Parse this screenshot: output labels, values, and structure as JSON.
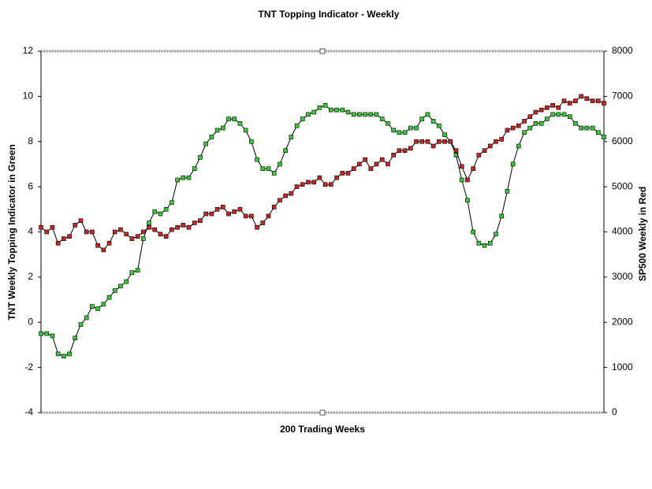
{
  "chart_data": {
    "type": "line",
    "title": "TNT Topping Indicator - Weekly",
    "x_label": "200 Trading Weeks",
    "y_label": "TNT Weekly Topping Indicator in Green",
    "y2_label": "SP500 Weekly in Red",
    "ylim": [
      -4,
      12
    ],
    "yticks": [
      -4,
      -2,
      0,
      2,
      4,
      6,
      8,
      10,
      12
    ],
    "y2lim": [
      0,
      8000
    ],
    "y2ticks": [
      0,
      1000,
      2000,
      3000,
      4000,
      5000,
      6000,
      7000,
      8000
    ],
    "series": [
      {
        "color": "#33cc33",
        "axis": "y",
        "values": [
          -0.5,
          -0.5,
          -0.6,
          -1.4,
          -1.5,
          -1.4,
          -0.7,
          -0.1,
          0.2,
          0.7,
          0.6,
          0.8,
          1.1,
          1.4,
          1.6,
          1.8,
          2.2,
          2.3,
          3.7,
          4.4,
          4.9,
          4.8,
          5.0,
          5.3,
          6.3,
          6.4,
          6.4,
          6.8,
          7.3,
          7.9,
          8.2,
          8.5,
          8.6,
          9.0,
          9.0,
          8.8,
          8.5,
          8.0,
          7.2,
          6.8,
          6.8,
          6.6,
          7.0,
          7.6,
          8.2,
          8.7,
          9.0,
          9.2,
          9.3,
          9.5,
          9.6,
          9.4,
          9.4,
          9.4,
          9.3,
          9.2,
          9.2,
          9.2,
          9.2,
          9.2,
          9.0,
          8.8,
          8.5,
          8.4,
          8.4,
          8.6,
          8.6,
          9.0,
          9.2,
          8.9,
          8.7,
          8.3,
          8.0,
          7.4,
          6.3,
          5.4,
          4.0,
          3.5,
          3.4,
          3.5,
          3.9,
          4.7,
          5.8,
          7.0,
          7.8,
          8.4,
          8.6,
          8.8,
          8.8,
          9.0,
          9.2,
          9.2,
          9.2,
          9.1,
          8.8,
          8.6,
          8.6,
          8.6,
          8.4,
          8.2
        ]
      },
      {
        "color": "#cc2222",
        "axis": "y2",
        "values": [
          4100,
          4000,
          4100,
          3750,
          3850,
          3900,
          4150,
          4250,
          4000,
          4000,
          3700,
          3600,
          3750,
          4000,
          4050,
          3950,
          3850,
          3900,
          4000,
          4100,
          4050,
          3950,
          3900,
          4050,
          4100,
          4150,
          4100,
          4200,
          4250,
          4400,
          4400,
          4500,
          4550,
          4400,
          4450,
          4500,
          4350,
          4350,
          4100,
          4200,
          4350,
          4550,
          4700,
          4800,
          4850,
          5000,
          5050,
          5100,
          5100,
          5200,
          5050,
          5050,
          5200,
          5300,
          5300,
          5400,
          5500,
          5600,
          5400,
          5500,
          5600,
          5500,
          5700,
          5800,
          5800,
          5850,
          6000,
          6000,
          6000,
          5900,
          6000,
          6000,
          6000,
          5800,
          5450,
          5150,
          5400,
          5700,
          5800,
          5900,
          6000,
          6050,
          6250,
          6300,
          6350,
          6450,
          6550,
          6650,
          6700,
          6750,
          6800,
          6750,
          6900,
          6850,
          6900,
          7000,
          6950,
          6900,
          6900,
          6850
        ]
      }
    ]
  }
}
